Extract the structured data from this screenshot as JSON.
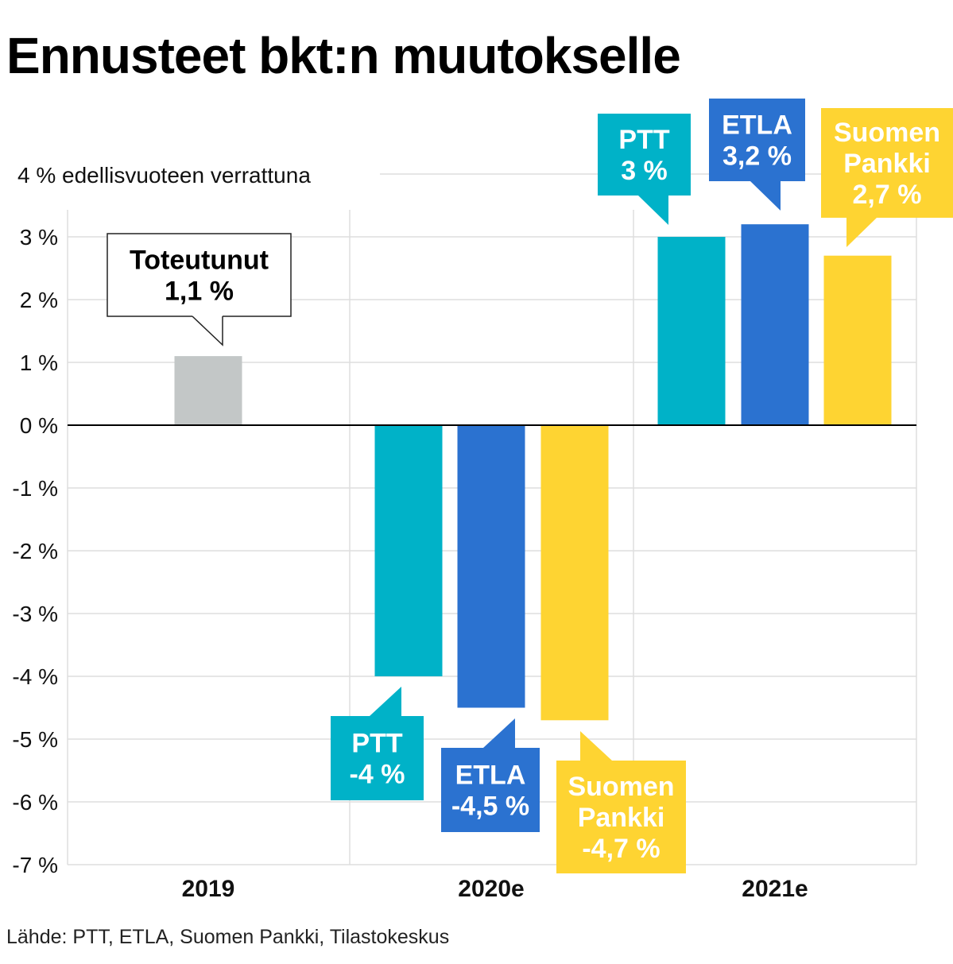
{
  "chart_data": {
    "type": "bar",
    "title": "Ennusteet bkt:n muutokselle",
    "ylabel": "4 % edellisvuoteen verrattuna",
    "yticks": [
      3,
      2,
      1,
      0,
      -1,
      -2,
      -3,
      -4,
      -5,
      -6,
      -7
    ],
    "ytick_labels": [
      "3 %",
      "2 %",
      "1 %",
      "0 %",
      "-1 %",
      "-2 %",
      "-3 %",
      "-4 %",
      "-5 %",
      "-6 %",
      "-7 %"
    ],
    "ylim": [
      -7,
      4
    ],
    "categories": [
      "2019",
      "2020e",
      "2021e"
    ],
    "bars": [
      {
        "category": "2019",
        "series": "Toteutunut",
        "value": 1.1,
        "color": "#c3c7c7",
        "label_lines": [
          "Toteutunut",
          "1,1 %"
        ],
        "label_bg": "#ffffff",
        "label_fg": "#000000"
      },
      {
        "category": "2020e",
        "series": "PTT",
        "value": -4.0,
        "color": "#00b2c8",
        "label_lines": [
          "PTT",
          "-4 %"
        ],
        "label_bg": "#00b2c8",
        "label_fg": "#ffffff"
      },
      {
        "category": "2020e",
        "series": "ETLA",
        "value": -4.5,
        "color": "#2b72d0",
        "label_lines": [
          "ETLA",
          "-4,5 %"
        ],
        "label_bg": "#2b72d0",
        "label_fg": "#ffffff"
      },
      {
        "category": "2020e",
        "series": "Suomen Pankki",
        "value": -4.7,
        "color": "#fed432",
        "label_lines": [
          "Suomen",
          "Pankki",
          "-4,7 %"
        ],
        "label_bg": "#fed432",
        "label_fg": "#ffffff"
      },
      {
        "category": "2021e",
        "series": "PTT",
        "value": 3.0,
        "color": "#00b2c8",
        "label_lines": [
          "PTT",
          "3 %"
        ],
        "label_bg": "#00b2c8",
        "label_fg": "#ffffff"
      },
      {
        "category": "2021e",
        "series": "ETLA",
        "value": 3.2,
        "color": "#2b72d0",
        "label_lines": [
          "ETLA",
          "3,2 %"
        ],
        "label_bg": "#2b72d0",
        "label_fg": "#ffffff"
      },
      {
        "category": "2021e",
        "series": "Suomen Pankki",
        "value": 2.7,
        "color": "#fed432",
        "label_lines": [
          "Suomen",
          "Pankki",
          "2,7 %"
        ],
        "label_bg": "#fed432",
        "label_fg": "#ffffff"
      }
    ]
  },
  "source": "Lähde: PTT, ETLA, Suomen Pankki, Tilastokeskus"
}
